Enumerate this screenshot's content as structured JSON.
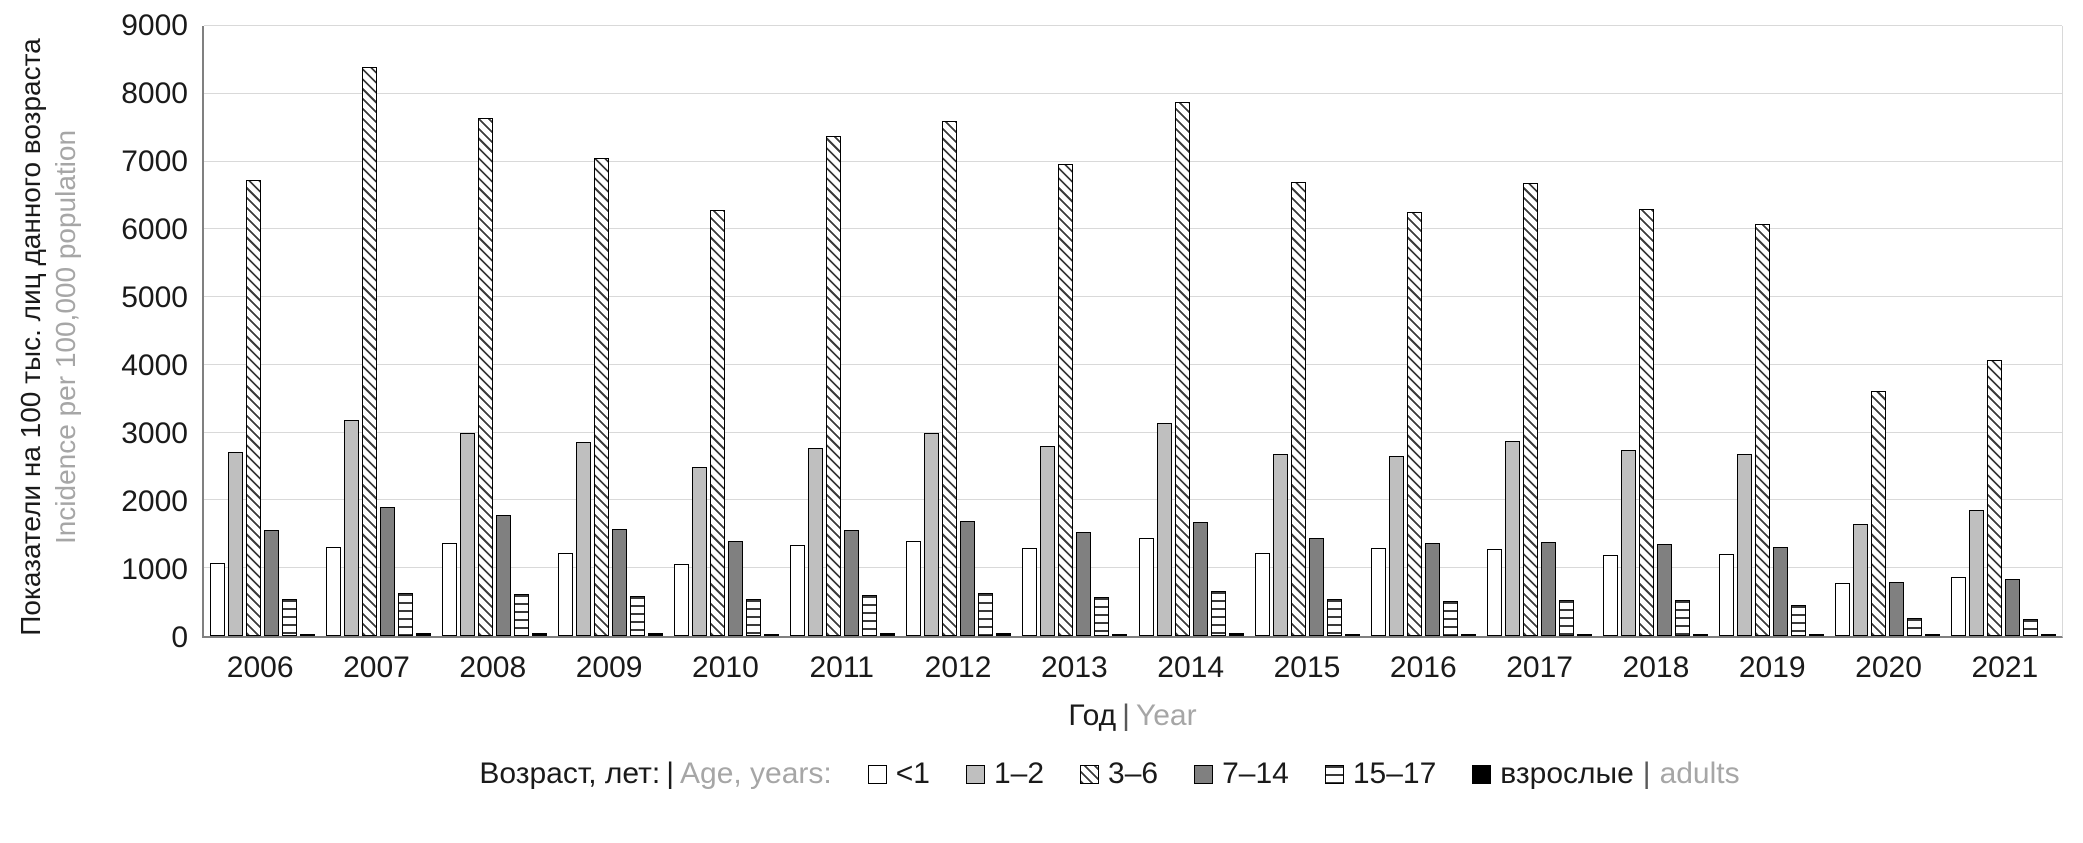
{
  "chart_data": {
    "type": "bar",
    "title": "",
    "x_title_ru": "Год",
    "x_title_en": "Year",
    "y_title_ru": "Показатели на 100 тыс. лиц данного возраста",
    "y_title_en": "Incidence per 100,000 population",
    "legend_title_ru": "Возраст, лет:",
    "legend_title_en": "Age, years:",
    "legend_position": "bottom",
    "grid": true,
    "ylim": [
      0,
      9000
    ],
    "ytick_step": 1000,
    "categories": [
      "2006",
      "2007",
      "2008",
      "2009",
      "2010",
      "2011",
      "2012",
      "2013",
      "2014",
      "2015",
      "2016",
      "2017",
      "2018",
      "2019",
      "2020",
      "2021"
    ],
    "series": [
      {
        "name": "<1",
        "key": "lt1",
        "pattern": "white",
        "values": [
          1080,
          1320,
          1370,
          1230,
          1060,
          1340,
          1400,
          1300,
          1450,
          1230,
          1300,
          1290,
          1200,
          1210,
          780,
          870
        ]
      },
      {
        "name": "1–2",
        "key": "1-2",
        "pattern": "lightgray",
        "values": [
          2720,
          3180,
          3000,
          2860,
          2500,
          2770,
          3000,
          2810,
          3150,
          2690,
          2650,
          2870,
          2740,
          2680,
          1650,
          1860
        ]
      },
      {
        "name": "3–6",
        "key": "3-6",
        "pattern": "diag",
        "values": [
          6730,
          8400,
          7650,
          7050,
          6280,
          7370,
          7600,
          6970,
          7880,
          6700,
          6260,
          6690,
          6300,
          6080,
          3610,
          4070
        ]
      },
      {
        "name": "7–14",
        "key": "7-14",
        "pattern": "darkgray",
        "values": [
          1560,
          1900,
          1780,
          1580,
          1400,
          1560,
          1700,
          1530,
          1680,
          1450,
          1370,
          1390,
          1360,
          1310,
          800,
          840
        ]
      },
      {
        "name": "15–17",
        "key": "15-17",
        "pattern": "hstripe",
        "values": [
          540,
          640,
          620,
          590,
          550,
          600,
          640,
          580,
          660,
          550,
          510,
          530,
          530,
          460,
          270,
          250
        ]
      },
      {
        "name": "взрослые",
        "name_en": "adults",
        "key": "adults",
        "pattern": "black",
        "values": [
          30,
          40,
          40,
          40,
          35,
          40,
          45,
          35,
          45,
          35,
          35,
          35,
          35,
          30,
          20,
          20
        ]
      }
    ],
    "colors": {
      "axis": "#808080",
      "grid": "#d9d9d9",
      "bar_border": "#000000",
      "light_gray_fill": "#bfbfbf",
      "dark_gray_fill": "#808080",
      "secondary_text": "#a6a6a6"
    }
  }
}
